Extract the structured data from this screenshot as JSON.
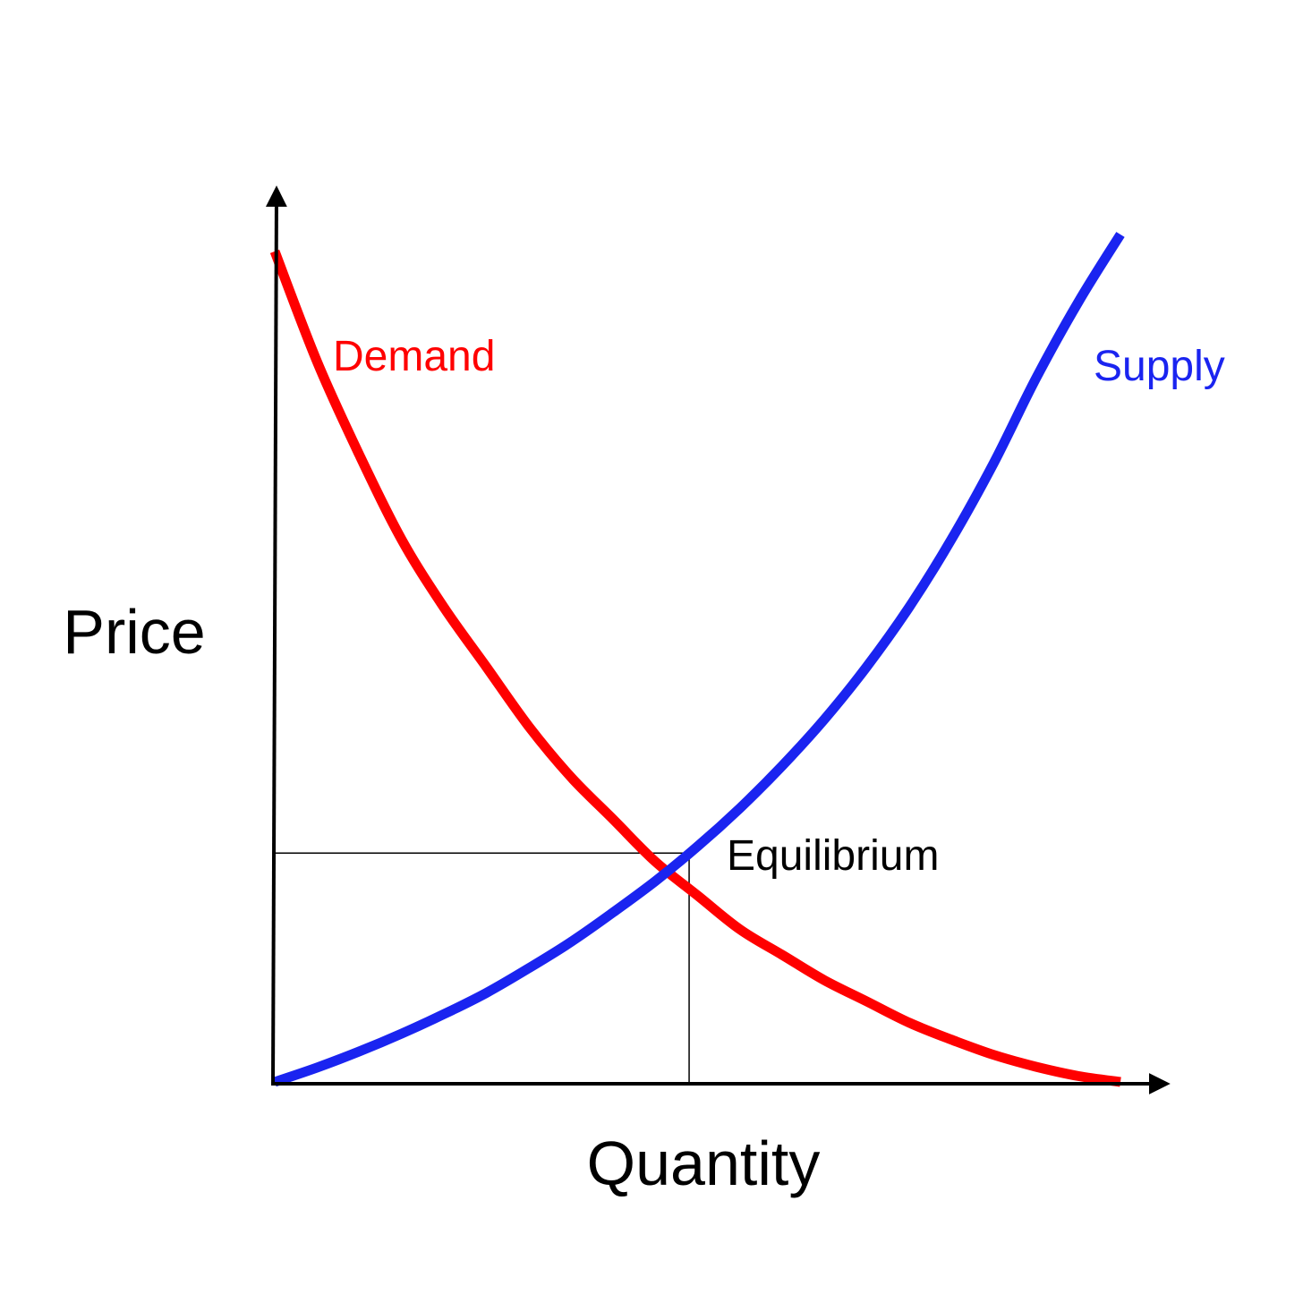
{
  "chart_data": {
    "type": "line",
    "title": "",
    "xlabel": "Quantity",
    "ylabel": "Price",
    "xlim": [
      0,
      1
    ],
    "ylim": [
      0,
      1
    ],
    "grid": false,
    "legend": "none",
    "series": [
      {
        "name": "Demand",
        "color": "#ff0000",
        "x": [
          0.0,
          0.05,
          0.1,
          0.15,
          0.2,
          0.25,
          0.3,
          0.35,
          0.4,
          0.45,
          0.5,
          0.55,
          0.6,
          0.65,
          0.7,
          0.75,
          0.8,
          0.85,
          0.9,
          0.95,
          1.0
        ],
        "y": [
          0.98,
          0.85,
          0.74,
          0.64,
          0.56,
          0.49,
          0.42,
          0.36,
          0.31,
          0.26,
          0.22,
          0.18,
          0.15,
          0.12,
          0.095,
          0.07,
          0.05,
          0.032,
          0.018,
          0.007,
          0.0
        ]
      },
      {
        "name": "Supply",
        "color": "#1a24f0",
        "x": [
          0.0,
          0.05,
          0.1,
          0.15,
          0.2,
          0.25,
          0.3,
          0.35,
          0.4,
          0.45,
          0.5,
          0.55,
          0.6,
          0.65,
          0.7,
          0.75,
          0.8,
          0.85,
          0.9,
          0.95,
          1.0
        ],
        "y": [
          0.0,
          0.017,
          0.036,
          0.057,
          0.08,
          0.105,
          0.134,
          0.165,
          0.2,
          0.237,
          0.278,
          0.323,
          0.373,
          0.428,
          0.49,
          0.56,
          0.64,
          0.73,
          0.83,
          0.92,
          1.0
        ]
      }
    ],
    "equilibrium": {
      "label": "Equilibrium",
      "x": 0.49,
      "y": 0.27
    }
  }
}
